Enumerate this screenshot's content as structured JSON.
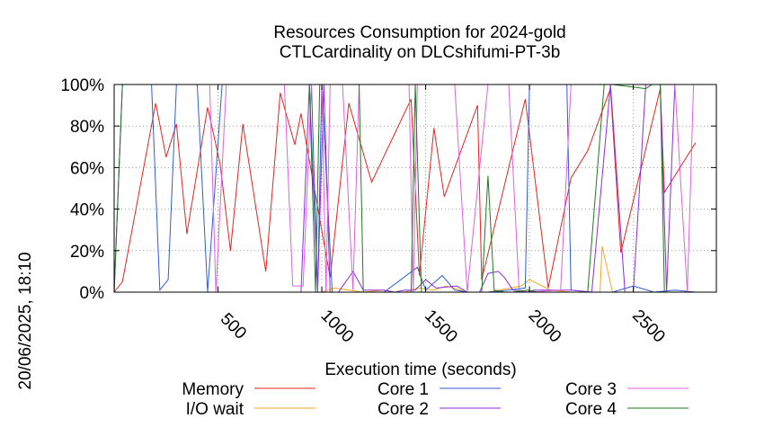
{
  "chart_data": {
    "type": "line",
    "title": "Resources Consumption for 2024-gold",
    "subtitle": "CTLCardinality on DLCshifumi-PT-3b",
    "side_label": "20/06/2025, 18:10",
    "xlabel": "Execution time (seconds)",
    "ylabel": "",
    "xlim": [
      0,
      2900
    ],
    "ylim": [
      0,
      100
    ],
    "x_ticks": [
      500,
      1000,
      1500,
      2000,
      2500
    ],
    "y_ticks": [
      0,
      20,
      40,
      60,
      80,
      100
    ],
    "y_tick_labels": [
      "0%",
      "20%",
      "40%",
      "60%",
      "80%",
      "100%"
    ],
    "grid": true,
    "legend_placement": "bottom",
    "series": [
      {
        "name": "Memory",
        "color": "#e8231e",
        "x": [
          0,
          40,
          200,
          250,
          300,
          350,
          450,
          510,
          560,
          620,
          730,
          800,
          870,
          900,
          1040,
          1130,
          1240,
          1430,
          1470,
          1540,
          1590,
          1750,
          1770,
          1980,
          2090,
          2200,
          2280,
          2390,
          2440,
          2630,
          2650,
          2800
        ],
        "y": [
          0,
          5,
          91,
          65,
          81,
          28,
          89,
          62,
          20,
          81,
          10,
          96,
          71,
          86,
          7,
          91,
          53,
          93,
          8,
          79,
          46,
          90,
          6,
          93,
          2,
          55,
          68,
          98,
          19,
          98,
          48,
          72
        ]
      },
      {
        "name": "I/O wait",
        "color": "#f5a623",
        "x": [
          0,
          1000,
          1060,
          1200,
          1300,
          1340,
          1400,
          1460,
          1540,
          1600,
          1700,
          1800,
          1960,
          2000,
          2100,
          2200,
          2340,
          2350,
          2400,
          2500,
          2700,
          2800
        ],
        "y": [
          0,
          0,
          2,
          0,
          1,
          0,
          0,
          2,
          1,
          3,
          0,
          0,
          3,
          6,
          1,
          0,
          0,
          22,
          0,
          0,
          0,
          0
        ]
      },
      {
        "name": "Core 1",
        "color": "#2d5dd6",
        "x": [
          0,
          40,
          120,
          180,
          220,
          260,
          300,
          350,
          400,
          450,
          520,
          580,
          600,
          700,
          800,
          900,
          950,
          980,
          1000,
          1050,
          1200,
          1300,
          1460,
          1500,
          1580,
          1640,
          1700,
          1800,
          1900,
          1980,
          2000,
          2100,
          2180,
          2200,
          2300,
          2400,
          2500,
          2600,
          2700,
          2800
        ],
        "y": [
          0,
          100,
          100,
          100,
          1,
          6,
          100,
          100,
          100,
          0,
          100,
          100,
          100,
          100,
          100,
          100,
          100,
          0,
          100,
          0,
          0,
          0,
          12,
          1,
          8,
          1,
          0,
          0,
          1,
          2,
          100,
          100,
          100,
          1,
          0,
          0,
          3,
          0,
          1,
          0
        ]
      },
      {
        "name": "Core 2",
        "color": "#8b2be2",
        "x": [
          0,
          900,
          940,
          980,
          1010,
          1040,
          1080,
          1150,
          1200,
          1300,
          1350,
          1400,
          1450,
          1500,
          1550,
          1650,
          1700,
          1760,
          1800,
          1850,
          1880,
          1920,
          1990,
          2020,
          2200,
          2300,
          2390,
          2460,
          2500,
          2560,
          2630,
          2660,
          2700,
          2800
        ],
        "y": [
          0,
          0,
          100,
          1,
          100,
          0,
          0,
          10,
          1,
          1,
          0,
          1,
          1,
          6,
          2,
          3,
          0,
          0,
          9,
          10,
          7,
          1,
          0,
          1,
          1,
          0,
          100,
          0,
          0,
          100,
          100,
          0,
          100,
          100
        ]
      },
      {
        "name": "Core 3",
        "color": "#e060e0",
        "x": [
          0,
          40,
          460,
          490,
          540,
          820,
          860,
          910,
          950,
          1000,
          1020,
          1040,
          1060,
          1100,
          1150,
          1180,
          1200,
          1240,
          1300,
          1420,
          1440,
          1460,
          1480,
          1560,
          1600,
          1640,
          1700,
          1800,
          1840,
          1900,
          1950,
          2000,
          2150,
          2200,
          2330,
          2400,
          2450,
          2540,
          2560,
          2700,
          2760,
          2790,
          2850
        ],
        "y": [
          0,
          100,
          100,
          0,
          100,
          100,
          3,
          3,
          100,
          100,
          0,
          100,
          100,
          100,
          1,
          100,
          100,
          100,
          100,
          100,
          0,
          100,
          100,
          100,
          100,
          100,
          0,
          100,
          100,
          100,
          1,
          0,
          1,
          100,
          100,
          100,
          100,
          100,
          100,
          100,
          0,
          100,
          100
        ]
      },
      {
        "name": "Core 4",
        "color": "#1f7a1f",
        "x": [
          0,
          40,
          500,
          900,
          940,
          970,
          990,
          1010,
          1040,
          1100,
          1180,
          1200,
          1250,
          1400,
          1430,
          1450,
          1480,
          1520,
          1600,
          1700,
          1770,
          1800,
          1830,
          1880,
          1920,
          1990,
          2040,
          2100,
          2160,
          2280,
          2360,
          2380,
          2400,
          2560,
          2590,
          2630,
          2650,
          2700,
          2800
        ],
        "y": [
          0,
          100,
          100,
          100,
          100,
          0,
          100,
          100,
          100,
          100,
          100,
          0,
          0,
          0,
          0,
          100,
          0,
          0,
          0,
          0,
          0,
          56,
          1,
          0,
          0,
          1,
          0,
          0,
          0,
          0,
          100,
          100,
          100,
          98,
          100,
          100,
          0,
          0,
          0
        ]
      }
    ]
  }
}
